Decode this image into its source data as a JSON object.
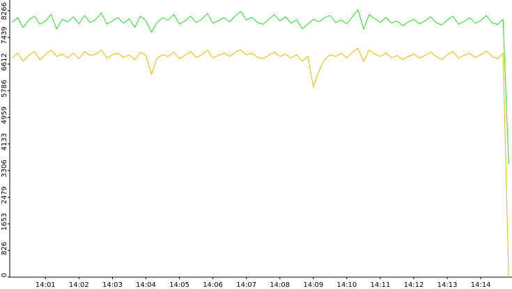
{
  "chart_data": {
    "type": "line",
    "x": [
      0,
      10,
      20,
      30,
      40,
      50,
      60,
      70,
      80,
      90,
      100,
      110,
      120,
      130,
      140,
      150,
      160,
      170,
      180,
      190,
      200,
      210,
      220,
      230,
      240,
      250,
      260,
      270,
      280,
      290,
      300,
      310,
      320,
      330,
      340,
      350,
      360,
      370,
      380,
      390,
      400,
      410,
      420,
      430,
      440,
      450,
      460,
      470,
      480,
      490,
      500,
      510,
      520,
      530,
      540,
      550,
      560,
      570,
      580,
      590,
      600,
      610,
      620,
      630,
      640,
      650,
      660,
      670,
      680,
      690,
      700,
      710,
      720,
      730,
      740,
      750,
      760,
      770,
      780,
      790,
      800,
      810,
      820,
      830,
      840,
      850,
      860,
      870,
      880,
      890
    ],
    "series": [
      {
        "color": "#22dd22",
        "values": [
          7900,
          8050,
          7750,
          7980,
          8100,
          7850,
          7950,
          8150,
          7700,
          8000,
          7920,
          8080,
          7860,
          8120,
          7900,
          7990,
          8200,
          7850,
          7950,
          8050,
          7880,
          8020,
          7750,
          8100,
          7960,
          7600,
          7900,
          8050,
          7980,
          8150,
          7850,
          7950,
          8100,
          7900,
          8000,
          8180,
          7880,
          7960,
          8050,
          7920,
          8100,
          8250,
          7980,
          8060,
          7900,
          7850,
          8000,
          8150,
          7950,
          8080,
          7880,
          7990,
          7700,
          7850,
          8000,
          7920,
          8050,
          8120,
          7900,
          7980,
          7860,
          8080,
          8300,
          7700,
          8150,
          8020,
          7900,
          8060,
          7880,
          7950,
          7800,
          7920,
          8000,
          7860,
          7950,
          8080,
          7900,
          7820,
          7980,
          8100,
          7850,
          7930,
          8050,
          7880,
          7960,
          8120,
          7900,
          7840,
          8000,
          3500
        ]
      },
      {
        "color": "#e6b800",
        "values": [
          6800,
          6950,
          6700,
          6880,
          7000,
          6750,
          6900,
          7050,
          6850,
          6920,
          6800,
          6950,
          6780,
          7000,
          6880,
          6920,
          7050,
          6800,
          6900,
          6950,
          6820,
          6900,
          6750,
          6980,
          6880,
          6300,
          6800,
          6900,
          6850,
          6980,
          6780,
          6880,
          7000,
          6820,
          6900,
          7050,
          6800,
          6880,
          6950,
          6850,
          6980,
          7050,
          6900,
          6950,
          6820,
          6780,
          6880,
          6980,
          6850,
          6920,
          6800,
          6900,
          6700,
          6850,
          5900,
          6400,
          6750,
          6900,
          6850,
          6950,
          6800,
          6980,
          7100,
          6700,
          7050,
          6920,
          6850,
          6960,
          6800,
          6880,
          6750,
          6850,
          6920,
          6800,
          6880,
          6980,
          6850,
          6750,
          6900,
          7000,
          6800,
          6880,
          6950,
          6820,
          6900,
          7020,
          6850,
          6780,
          6950,
          0
        ]
      }
    ],
    "xlim": [
      -4,
      896
    ],
    "xticks": [
      {
        "value": 60,
        "label": "14:01"
      },
      {
        "value": 120,
        "label": "14:02"
      },
      {
        "value": 180,
        "label": "14:03"
      },
      {
        "value": 240,
        "label": "14:04"
      },
      {
        "value": 300,
        "label": "14:05"
      },
      {
        "value": 360,
        "label": "14:06"
      },
      {
        "value": 420,
        "label": "14:07"
      },
      {
        "value": 480,
        "label": "14:08"
      },
      {
        "value": 540,
        "label": "14:09"
      },
      {
        "value": 600,
        "label": "14:10"
      },
      {
        "value": 660,
        "label": "14:11"
      },
      {
        "value": 720,
        "label": "14:12"
      },
      {
        "value": 780,
        "label": "14:13"
      },
      {
        "value": 840,
        "label": "14:14"
      }
    ],
    "ylim": [
      0,
      8600
    ],
    "yticks": [
      0,
      826,
      1653,
      2479,
      3306,
      4133,
      4959,
      5786,
      6612,
      7439,
      8266
    ],
    "grid": false
  }
}
